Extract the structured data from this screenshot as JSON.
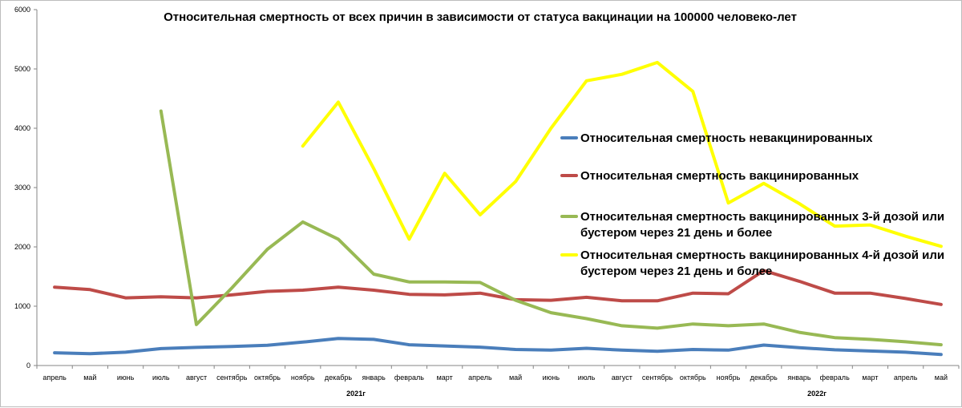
{
  "chart_data": {
    "type": "line",
    "title": "Относительная смертность от всех причин в зависимости от статуса вакцинации на 100000 человеко-лет",
    "xlabel": "",
    "ylabel": "",
    "ylim": [
      0,
      6000
    ],
    "yticks": [
      "0",
      "1000",
      "2000",
      "3000",
      "4000",
      "5000",
      "6000"
    ],
    "categories": [
      "апрель",
      "май",
      "июнь",
      "июль",
      "август",
      "сентябрь",
      "октябрь",
      "ноябрь",
      "декабрь",
      "январь",
      "февраль",
      "март",
      "апрель",
      "май",
      "июнь",
      "июль",
      "август",
      "сентябрь",
      "октябрь",
      "ноябрь",
      "декабрь",
      "январь",
      "февраль",
      "март",
      "апрель",
      "май"
    ],
    "year_labels": [
      {
        "label": "2021г",
        "center_index": 9
      },
      {
        "label": "2022г",
        "center_index": 22
      }
    ],
    "series": [
      {
        "name": "Относительная смертность невакцинированных",
        "color": "#4a7ebb",
        "values": [
          215,
          200,
          225,
          285,
          305,
          320,
          340,
          395,
          455,
          440,
          350,
          330,
          310,
          270,
          260,
          290,
          260,
          240,
          270,
          260,
          345,
          300,
          265,
          245,
          225,
          185
        ]
      },
      {
        "name": "Относительная смертность вакцинированных",
        "color": "#be4b48",
        "values": [
          1320,
          1280,
          1140,
          1160,
          1140,
          1190,
          1250,
          1270,
          1320,
          1270,
          1200,
          1190,
          1220,
          1110,
          1100,
          1150,
          1090,
          1090,
          1220,
          1210,
          1600,
          1420,
          1220,
          1220,
          1130,
          1030
        ]
      },
      {
        "name": "Относительная смертность вакцинированных 3-й дозой или бустером через 21 день и более",
        "color": "#98b954",
        "values": [
          null,
          null,
          null,
          4290,
          690,
          1310,
          1960,
          2420,
          2130,
          1540,
          1410,
          1410,
          1400,
          1100,
          890,
          790,
          670,
          630,
          700,
          670,
          700,
          560,
          470,
          440,
          400,
          350
        ]
      },
      {
        "name": "Относительная смертность вакцинированных 4-й дозой или бустером через 21 день и более",
        "color": "#ffff00",
        "values": [
          null,
          null,
          null,
          null,
          null,
          null,
          null,
          3700,
          4440,
          3320,
          2130,
          3240,
          2540,
          3100,
          4000,
          4800,
          4910,
          5110,
          4620,
          2740,
          3070,
          2730,
          2350,
          2370,
          2180,
          2010
        ]
      }
    ],
    "legend": {
      "position": "right",
      "entries": [
        {
          "line1": "Относительная смертность невакцинированных",
          "line2": ""
        },
        {
          "line1": "Относительная смертность вакцинированных",
          "line2": ""
        },
        {
          "line1": "Относительная смертность вакцинированных 3-й дозой или",
          "line2": "бустером через 21 день и более"
        },
        {
          "line1": "Относительная смертность вакцинированных 4-й дозой или",
          "line2": "бустером через 21 день и более"
        }
      ]
    }
  }
}
